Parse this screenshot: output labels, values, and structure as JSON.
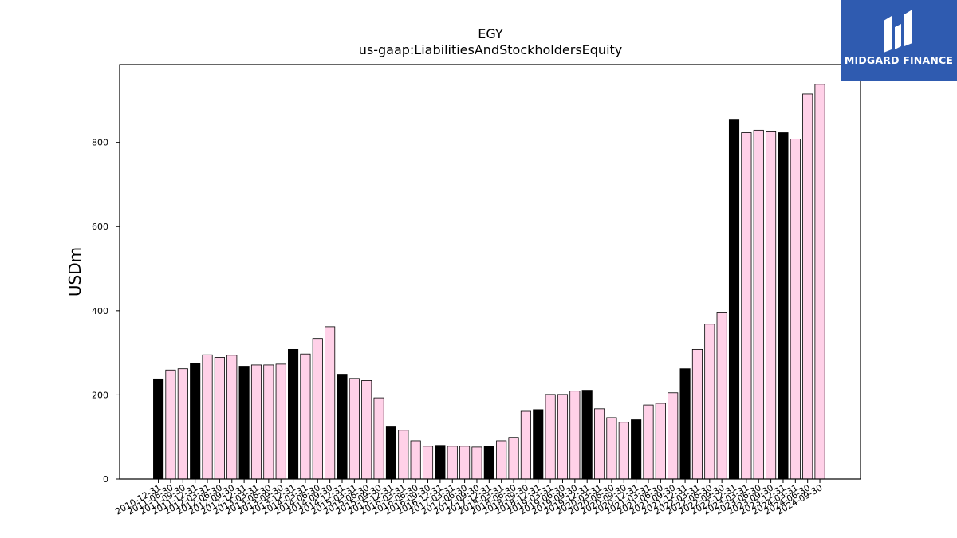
{
  "brand": {
    "name": "MIDGARD FINANCE",
    "color": "#2f5bb0"
  },
  "colors": {
    "annual": "#000000",
    "quarterly": "#ffd1e8",
    "edge": "#000000"
  },
  "chart_data": {
    "type": "bar",
    "title": "EGY",
    "subtitle": "us-gaap:LiabilitiesAndStockholdersEquity",
    "ylabel": "USDm",
    "xlabel": "",
    "ylim": [
      0,
      985
    ],
    "yticks": [
      0,
      200,
      400,
      600,
      800
    ],
    "grid": false,
    "categories": [
      "2010-12-31",
      "2011-06-30",
      "2011-09-30",
      "2011-12-31",
      "2012-03-31",
      "2012-06-30",
      "2012-09-30",
      "2012-12-31",
      "2013-03-31",
      "2013-06-30",
      "2013-09-30",
      "2013-12-31",
      "2014-03-31",
      "2014-06-30",
      "2014-09-30",
      "2014-12-31",
      "2015-03-31",
      "2015-06-30",
      "2015-09-30",
      "2015-12-31",
      "2016-03-31",
      "2016-06-30",
      "2016-09-30",
      "2016-12-31",
      "2017-03-31",
      "2017-06-30",
      "2017-09-30",
      "2017-12-31",
      "2018-03-31",
      "2018-06-30",
      "2018-09-30",
      "2018-12-31",
      "2019-03-31",
      "2019-06-30",
      "2019-09-30",
      "2019-12-31",
      "2020-03-31",
      "2020-06-30",
      "2020-09-30",
      "2020-12-31",
      "2021-03-31",
      "2021-06-30",
      "2021-09-30",
      "2021-12-31",
      "2022-03-31",
      "2022-06-30",
      "2022-09-30",
      "2022-12-31",
      "2023-03-31",
      "2023-06-30",
      "2023-09-30",
      "2023-12-31",
      "2024-03-31",
      "2024-06-30",
      "2024-09-30"
    ],
    "values": [
      238,
      259,
      262,
      274,
      295,
      289,
      294,
      268,
      271,
      271,
      273,
      308,
      297,
      334,
      362,
      249,
      239,
      234,
      193,
      124,
      116,
      91,
      78,
      80,
      78,
      78,
      76,
      78,
      91,
      99,
      161,
      165,
      201,
      201,
      209,
      211,
      167,
      146,
      135,
      141,
      176,
      180,
      205,
      262,
      308,
      368,
      395,
      855,
      823,
      829,
      827,
      823,
      808,
      915,
      938
    ],
    "annual": [
      true,
      false,
      false,
      true,
      false,
      false,
      false,
      true,
      false,
      false,
      false,
      true,
      false,
      false,
      false,
      true,
      false,
      false,
      false,
      true,
      false,
      false,
      false,
      true,
      false,
      false,
      false,
      true,
      false,
      false,
      false,
      true,
      false,
      false,
      false,
      true,
      false,
      false,
      false,
      true,
      false,
      false,
      false,
      true,
      false,
      false,
      false,
      true,
      false,
      false,
      false,
      true,
      false,
      false,
      false
    ]
  }
}
